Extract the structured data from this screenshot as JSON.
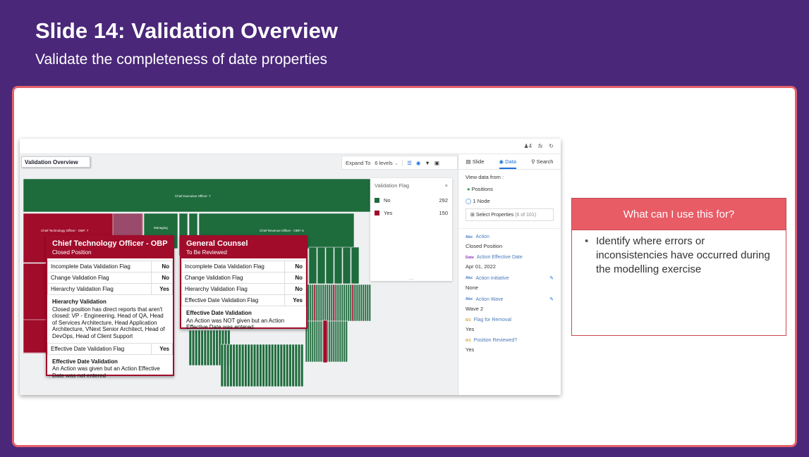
{
  "slide": {
    "title": "Slide 14: Validation Overview",
    "subtitle": "Validate the completeness of date properties"
  },
  "app": {
    "view_title": "Validation Overview",
    "top_icons": {
      "users_count": "4",
      "fx": "fx",
      "refresh": "↻"
    },
    "toolbar": {
      "expand_label": "Expand To",
      "levels": "6 levels",
      "chevron": "⌄"
    },
    "panel_tabs": [
      {
        "label": "Slide",
        "icon": "slide-icon"
      },
      {
        "label": "Data",
        "icon": "data-icon",
        "active": true
      },
      {
        "label": "Search",
        "icon": "search-icon"
      }
    ],
    "side": {
      "view_data_from": "View data from :",
      "option_positions": "Positions",
      "option_node": "1 Node",
      "select_properties": "Select Properties",
      "select_count": "(6 of 101)",
      "properties": [
        {
          "type": "Abc",
          "label": "Action",
          "value": "Closed Position"
        },
        {
          "type": "Date",
          "label": "Action Effective Date",
          "value": "Apr 01, 2022"
        },
        {
          "type": "Abc",
          "label": "Action Initiative",
          "value": "None"
        },
        {
          "type": "Abc",
          "label": "Action Wave",
          "value": "Wave 2"
        },
        {
          "type": "0/1",
          "label": "Flag for Removal",
          "value": "Yes"
        },
        {
          "type": "0/1",
          "label": "Position Reviewed?",
          "value": "Yes"
        }
      ]
    },
    "legend": {
      "title": "Validation Flag",
      "close": "×",
      "items": [
        {
          "label": "No",
          "count": "292",
          "color": "#1e6b3c"
        },
        {
          "label": "Yes",
          "count": "150",
          "color": "#a00c2a"
        }
      ],
      "more": "..."
    },
    "chart_labels": {
      "ceo": "Chief Executive Officer: 7",
      "cto": "Chief Technology Officer - OBP: 7",
      "cro": "Chief Revenue Officer - OBP: 6",
      "managing": "Managing"
    },
    "tooltip_cto": {
      "title": "Chief Technology Officer - OBP",
      "subtitle": "Closed Position",
      "rows": [
        {
          "label": "Incomplete Data Validation Flag",
          "value": "No"
        },
        {
          "label": "Change Validation Flag",
          "value": "No"
        },
        {
          "label": "Hierarchy Validation Flag",
          "value": "Yes"
        }
      ],
      "hier_title": "Hierarchy Validation",
      "hier_text": "Closed position has direct reports that aren't closed: VP - Engineering, Head of QA, Head of Services Architecture, Head Application Architecture, VNext Senior Architect, Head of DevOps, Head of Client Support",
      "eff_row": {
        "label": "Effective Date Validation Flag",
        "value": "Yes"
      },
      "eff_title": "Effective Date Validation",
      "eff_text": "An Action was given but an Action Effective Date was not entered"
    },
    "tooltip_gc": {
      "title": "General Counsel",
      "subtitle": "To Be Reviewed",
      "rows": [
        {
          "label": "Incomplete Data Validation Flag",
          "value": "No"
        },
        {
          "label": "Change Validation Flag",
          "value": "No"
        },
        {
          "label": "Hierarchy Validation Flag",
          "value": "No"
        },
        {
          "label": "Effective Date Validation Flag",
          "value": "Yes"
        }
      ],
      "eff_title": "Effective Date Validation",
      "eff_text": "An Action was NOT given but an Action Effective Date was entered"
    }
  },
  "note": {
    "heading": "What can I use this for?",
    "bullets": [
      "Identify where errors or inconsistencies have occurred during the modelling exercise"
    ]
  },
  "colors": {
    "green": "#1e6b3c",
    "red": "#a00c2a",
    "accent": "#e85c66",
    "purple": "#4a2779"
  }
}
